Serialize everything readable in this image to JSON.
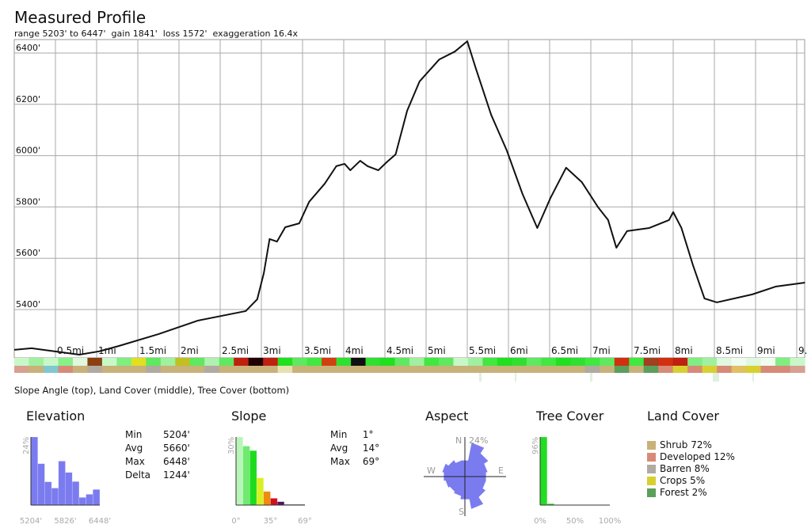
{
  "header": {
    "title": "Measured Profile",
    "subtitle": "range 5203' to 6447'  gain 1841'  loss 1572'  exaggeration 16.4x"
  },
  "chart_data": [
    {
      "type": "line",
      "title": "Measured Profile",
      "ylim": [
        5204,
        6448
      ],
      "xlim": [
        0,
        9.6
      ],
      "yticks": [
        "5400'",
        "5600'",
        "5800'",
        "6000'",
        "6200'",
        "6400'"
      ],
      "ytick_values": [
        5400,
        5600,
        5800,
        6000,
        6200,
        6400
      ],
      "xticks": [
        "0.5mi",
        "1mi",
        "1.5mi",
        "2mi",
        "2.5mi",
        "3mi",
        "3.5mi",
        "4mi",
        "4.5mi",
        "5mi",
        "5.5mi",
        "6mi",
        "6.5mi",
        "7mi",
        "7.5mi",
        "8mi",
        "8.5mi",
        "9mi",
        "9."
      ],
      "xtick_values": [
        0.5,
        1,
        1.5,
        2,
        2.5,
        3,
        3.5,
        4,
        4.5,
        5,
        5.5,
        6,
        6.5,
        7,
        7.5,
        8,
        8.5,
        9,
        9.5
      ],
      "grid": true,
      "series": [
        {
          "x": [
            0,
            0.21,
            0.79,
            1.03,
            1.27,
            1.75,
            2.23,
            2.81,
            2.95,
            3.03,
            3.1,
            3.19,
            3.29,
            3.46,
            3.58,
            3.77,
            3.91,
            4.01,
            4.08,
            4.2,
            4.29,
            4.42,
            4.52,
            4.63,
            4.77,
            4.92,
            5.16,
            5.35,
            5.5,
            5.6,
            5.79,
            5.98,
            6.17,
            6.35,
            6.51,
            6.7,
            6.89,
            7.09,
            7.21,
            7.31,
            7.44,
            7.71,
            7.95,
            8.0,
            8.1,
            8.24,
            8.38,
            8.53,
            8.96,
            9.25,
            9.6
          ],
          "y": [
            5243,
            5249,
            5224,
            5237,
            5258,
            5304,
            5357,
            5394,
            5440,
            5542,
            5675,
            5665,
            5721,
            5736,
            5820,
            5891,
            5959,
            5968,
            5943,
            5980,
            5959,
            5943,
            5974,
            6005,
            6175,
            6289,
            6375,
            6406,
            6446,
            6344,
            6159,
            6020,
            5851,
            5718,
            5835,
            5953,
            5897,
            5798,
            5749,
            5641,
            5706,
            5718,
            5749,
            5780,
            5718,
            5573,
            5443,
            5428,
            5459,
            5490,
            5505
          ]
        }
      ]
    },
    {
      "type": "bar",
      "title": "Elevation",
      "ylabel": "24%",
      "xticks": [
        "5204'",
        "5826'",
        "6448'"
      ],
      "values": [
        24,
        14.6,
        8.2,
        6,
        15.5,
        11.5,
        8.3,
        2.7,
        3.8,
        5.5
      ],
      "color": "#7b7bf0"
    },
    {
      "type": "bar",
      "title": "Slope",
      "ylabel": "30%",
      "xticks": [
        "0°",
        "35°",
        "69°"
      ],
      "values": [
        30,
        26,
        24,
        12,
        6,
        3,
        1.5,
        0.3,
        0.3,
        0.3
      ],
      "colors": [
        "#b8f5b8",
        "#6fea6f",
        "#1edb1e",
        "#d8f020",
        "#f08a10",
        "#d01020",
        "#5a1060",
        "#333",
        "#333",
        "#333"
      ]
    },
    {
      "type": "pie",
      "title": "Aspect",
      "label": "24%",
      "directions": [
        "N",
        "NNE",
        "NE",
        "ENE",
        "E",
        "ESE",
        "SE",
        "SSE",
        "S",
        "SSW",
        "SW",
        "WSW",
        "W",
        "WNW",
        "NW",
        "NNW"
      ],
      "values": [
        10,
        21,
        17,
        14,
        13,
        13,
        15,
        20,
        14,
        12,
        11,
        12,
        13,
        14,
        12,
        10
      ],
      "color": "#7b7bf0",
      "compass": [
        "N",
        "E",
        "S",
        "W"
      ]
    },
    {
      "type": "bar",
      "title": "Tree Cover",
      "ylabel": "96%",
      "xticks": [
        "0%",
        "50%",
        "100%"
      ],
      "values": [
        96,
        2,
        0,
        0,
        0,
        0,
        0,
        0,
        0,
        0
      ],
      "color": "#22dd22"
    }
  ],
  "stats": {
    "elevation": [
      [
        "Min",
        "5204'"
      ],
      [
        "Avg",
        "5660'"
      ],
      [
        "Max",
        "6448'"
      ],
      [
        "Delta",
        "1244'"
      ]
    ],
    "slope": [
      [
        "Min",
        "1°"
      ],
      [
        "Avg",
        "14°"
      ],
      [
        "Max",
        "69°"
      ]
    ]
  },
  "land_cover": {
    "title": "Land Cover",
    "items": [
      {
        "label": "Shrub 72%",
        "color": "#c8b27a"
      },
      {
        "label": "Developed 12%",
        "color": "#d88a78"
      },
      {
        "label": "Barren 8%",
        "color": "#b0aaa0"
      },
      {
        "label": "Crops 5%",
        "color": "#d8d030"
      },
      {
        "label": "Forest 2%",
        "color": "#5aa05a"
      }
    ]
  },
  "strips": {
    "caption": "Slope Angle (top), Land Cover (middle), Tree Cover (bottom)",
    "slope_colors": [
      "#c8f8c8",
      "#a0f0a0",
      "#c8f8c8",
      "#8af08a",
      "#e0f8e0",
      "#8a4010",
      "#c8f8c8",
      "#80ee80",
      "#e0e020",
      "#60e860",
      "#a0f0a0",
      "#c0c020",
      "#60e860",
      "#b0f0b0",
      "#60e860",
      "#c02010",
      "#200000",
      "#c02010",
      "#20e020",
      "#60e860",
      "#40e840",
      "#d04010",
      "#30e030",
      "#101010",
      "#30e030",
      "#20e020",
      "#60e860",
      "#a0f0a0",
      "#40e840",
      "#60e860",
      "#c8f8c8",
      "#a0f0a0",
      "#40e840",
      "#20e020",
      "#30e030",
      "#60e860",
      "#40e840",
      "#20e020",
      "#30e030",
      "#40e840",
      "#60e860",
      "#d03010",
      "#40e840",
      "#a04020",
      "#d03010",
      "#c02010",
      "#80ee80",
      "#a0f0a0",
      "#e0f8e0",
      "#f0fcf0",
      "#e0f8e0",
      "#f0fcf0",
      "#80ee80",
      "#c8f8c8"
    ],
    "land_colors": [
      "#d8a090",
      "#c8b27a",
      "#80c8d0",
      "#d88a78",
      "#c8b27a",
      "#b0aaa0",
      "#c8b27a",
      "#c8b27a",
      "#c8b27a",
      "#b0aaa0",
      "#c8b27a",
      "#c8b27a",
      "#c8b27a",
      "#b0aaa0",
      "#c8b27a",
      "#c8b27a",
      "#c8b27a",
      "#c8b27a",
      "#e8e0b0",
      "#c8b27a",
      "#c8b27a",
      "#c8b27a",
      "#c8b27a",
      "#c8b27a",
      "#c8b27a",
      "#c8b27a",
      "#c8b27a",
      "#c8b27a",
      "#c8b27a",
      "#c8b27a",
      "#c8b27a",
      "#c8b27a",
      "#c8b27a",
      "#c8b27a",
      "#c8b27a",
      "#c8b27a",
      "#c8b27a",
      "#c8b27a",
      "#c8b27a",
      "#b0aaa0",
      "#c8b27a",
      "#5aa05a",
      "#c8b27a",
      "#5aa05a",
      "#d88a78",
      "#d8d030",
      "#d88a78",
      "#d8d030",
      "#d88a78",
      "#e0c060",
      "#d8d030",
      "#d88a78",
      "#d88a78",
      "#d8a090"
    ]
  }
}
